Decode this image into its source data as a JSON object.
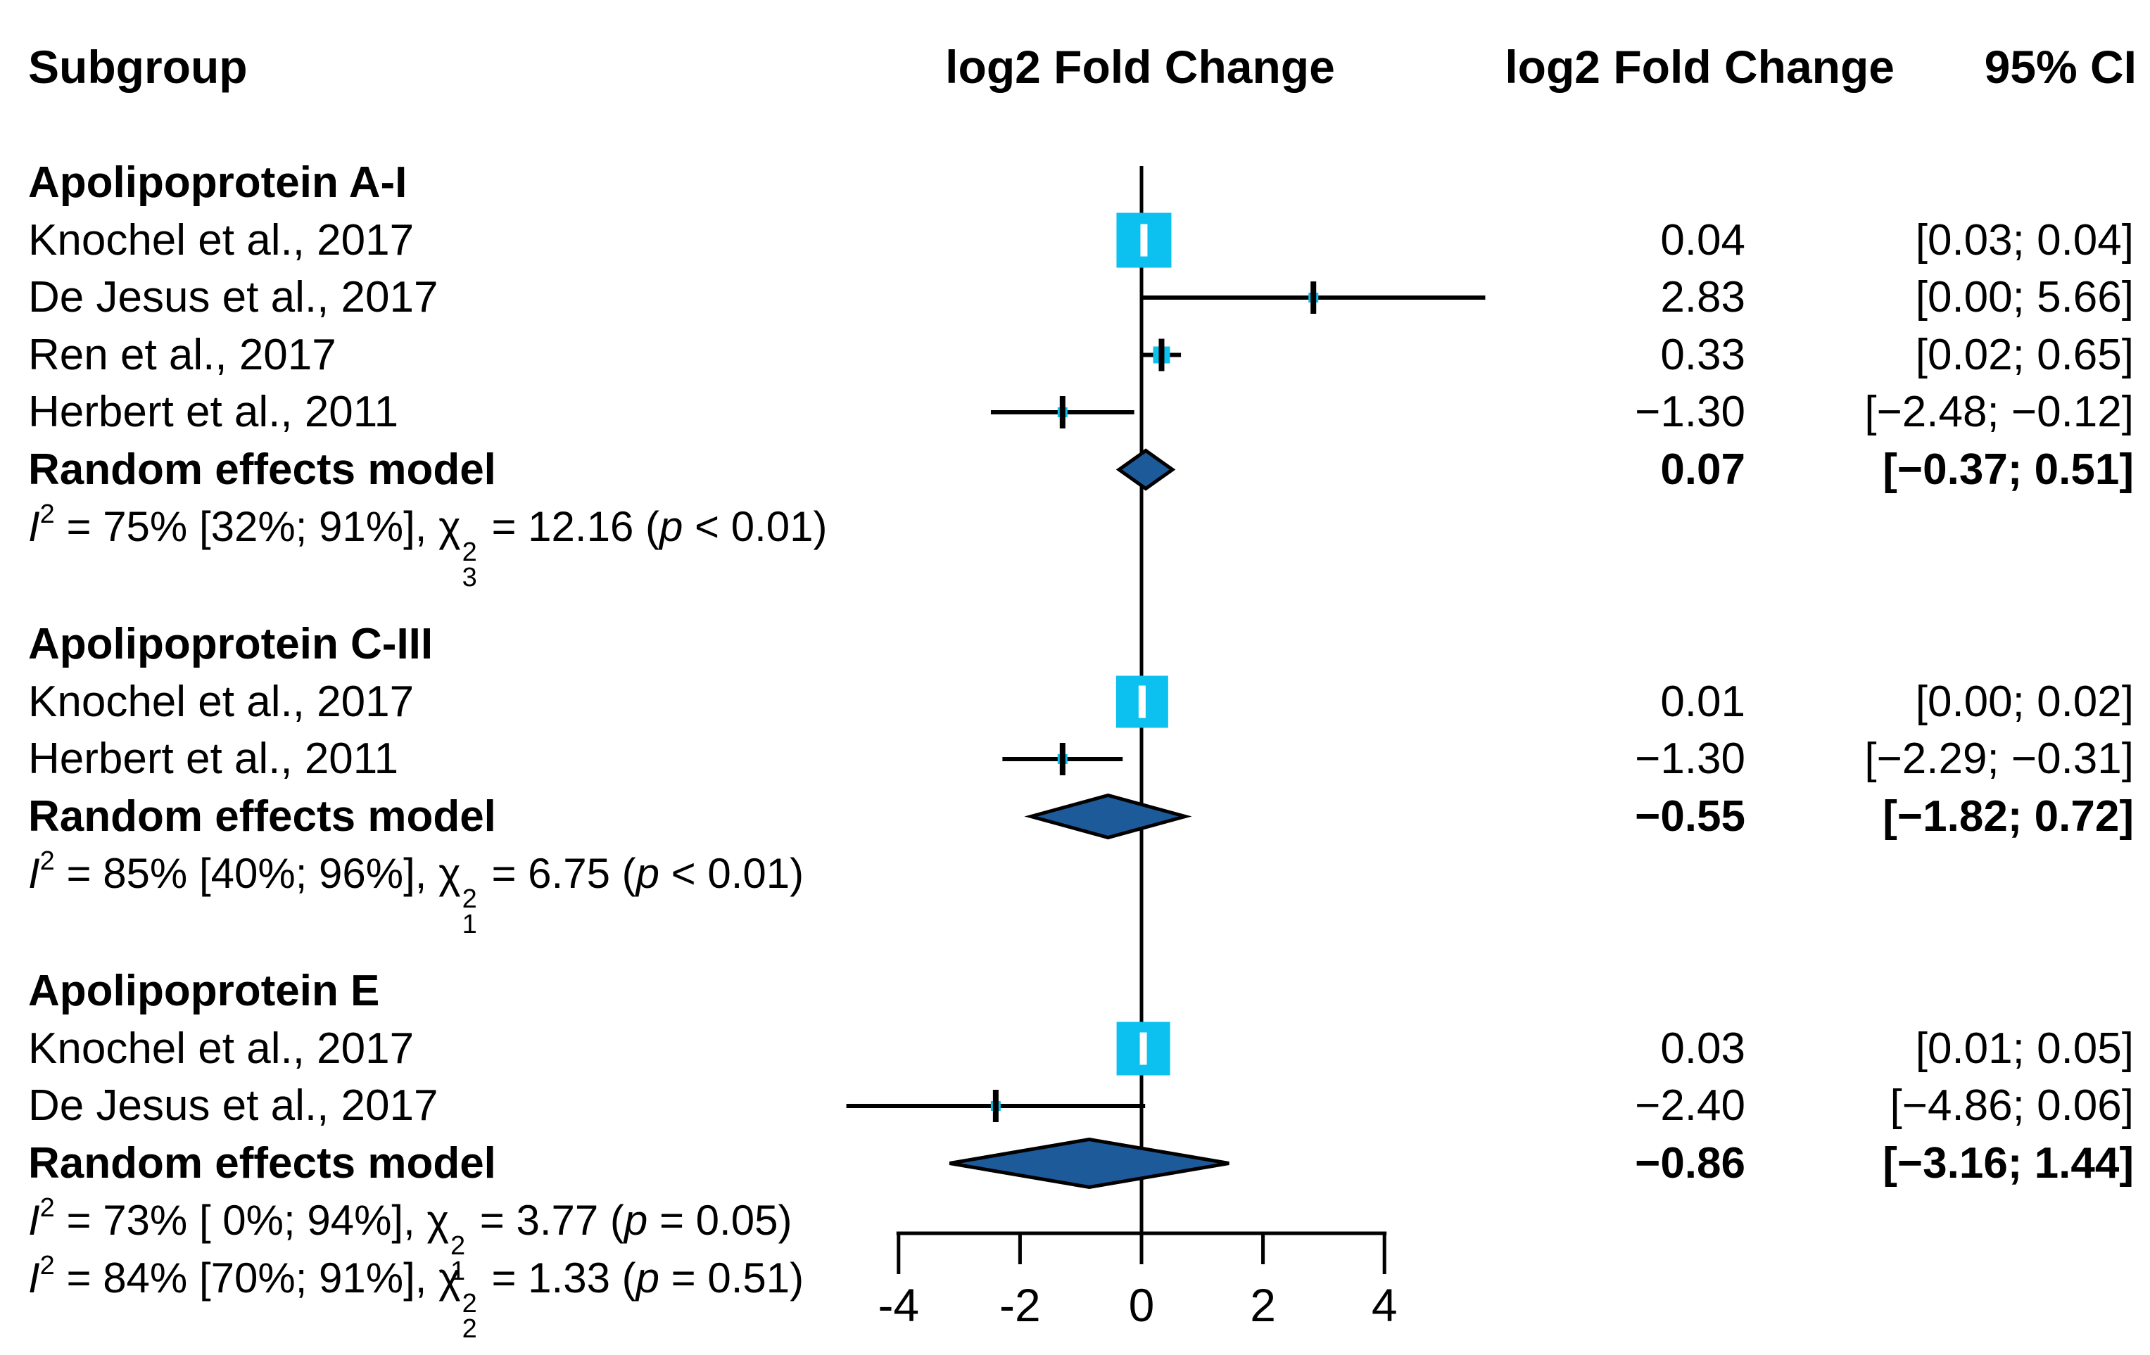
{
  "title_row": {
    "subgroup": "Subgroup",
    "plot_header": "log2 Fold Change",
    "effect_header": "log2 Fold Change",
    "ci_header": "95% CI"
  },
  "chart_data": {
    "type": "forest",
    "xlabel": "log2 Fold Change",
    "axis": {
      "xmin": -4,
      "xmax": 4,
      "zero_line": 0
    },
    "axis_tick_values": [
      -4,
      -2,
      0,
      2,
      4
    ],
    "axis_tick_labels": [
      "-4",
      "-2",
      "0",
      "2",
      "4"
    ],
    "colors": {
      "square_fill": "#0cc0ef",
      "diamond_fill": "#1c5a9a",
      "line": "#000000",
      "background": "#ffffff"
    },
    "symbols": {
      "i": "I",
      "chi": "χ",
      "p": "p"
    },
    "sections": [
      {
        "heading": "Apolipoprotein A-I",
        "studies": [
          {
            "label": "Knochel et al., 2017",
            "effect": 0.04,
            "ci": [
              0.03,
              0.04
            ],
            "effect_text": "0.04",
            "ci_text": "[0.03; 0.04]",
            "marker": "square",
            "marker_size": 78
          },
          {
            "label": "De Jesus et al., 2017",
            "effect": 2.83,
            "ci": [
              0.0,
              5.66
            ],
            "effect_text": "2.83",
            "ci_text": "[0.00; 5.66]",
            "marker": "tick",
            "marker_size": 14
          },
          {
            "label": "Ren et al., 2017",
            "effect": 0.33,
            "ci": [
              0.02,
              0.65
            ],
            "effect_text": "0.33",
            "ci_text": "[0.02; 0.65]",
            "marker": "tick",
            "marker_size": 24
          },
          {
            "label": "Herbert et al., 2011",
            "effect": -1.3,
            "ci": [
              -2.48,
              -0.12
            ],
            "effect_text": "−1.30",
            "ci_text": "[−2.48; −0.12]",
            "marker": "tick",
            "marker_size": 14
          }
        ],
        "random_effects": {
          "label": "Random effects model",
          "effect": 0.07,
          "ci": [
            -0.37,
            0.51
          ],
          "effect_text": "0.07",
          "ci_text": "[−0.37; 0.51]",
          "diamond_half_height": 27
        },
        "stats": [
          {
            "i2_tail": " = 75% [32%; 91%], ",
            "chi_sub": "3",
            "chi_tail": " = 12.16 (",
            "p_tail": " < 0.01)"
          }
        ]
      },
      {
        "heading": "Apolipoprotein C-III",
        "studies": [
          {
            "label": "Knochel et al., 2017",
            "effect": 0.01,
            "ci": [
              0.0,
              0.02
            ],
            "effect_text": "0.01",
            "ci_text": "[0.00; 0.02]",
            "marker": "square",
            "marker_size": 74
          },
          {
            "label": "Herbert et al., 2011",
            "effect": -1.3,
            "ci": [
              -2.29,
              -0.31
            ],
            "effect_text": "−1.30",
            "ci_text": "[−2.29; −0.31]",
            "marker": "tick",
            "marker_size": 14
          }
        ],
        "random_effects": {
          "label": "Random effects model",
          "effect": -0.55,
          "ci": [
            -1.82,
            0.72
          ],
          "effect_text": "−0.55",
          "ci_text": "[−1.82; 0.72]",
          "diamond_half_height": 30
        },
        "stats": [
          {
            "i2_tail": " = 85% [40%; 96%], ",
            "chi_sub": "1",
            "chi_tail": " = 6.75 (",
            "p_tail": " < 0.01)"
          }
        ]
      },
      {
        "heading": "Apolipoprotein E",
        "studies": [
          {
            "label": "Knochel et al., 2017",
            "effect": 0.03,
            "ci": [
              0.01,
              0.05
            ],
            "effect_text": "0.03",
            "ci_text": "[0.01; 0.05]",
            "marker": "square",
            "marker_size": 76
          },
          {
            "label": "De Jesus et al., 2017",
            "effect": -2.4,
            "ci": [
              -4.86,
              0.06
            ],
            "effect_text": "−2.40",
            "ci_text": "[−4.86; 0.06]",
            "marker": "tick",
            "marker_size": 14
          }
        ],
        "random_effects": {
          "label": "Random effects model",
          "effect": -0.86,
          "ci": [
            -3.16,
            1.44
          ],
          "effect_text": "−0.86",
          "ci_text": "[−3.16; 1.44]",
          "diamond_half_height": 34
        },
        "stats": [
          {
            "i2_tail": " = 73% [ 0%; 94%], ",
            "chi_sub": "1",
            "chi_tail": " = 3.77 (",
            "p_tail": " = 0.05)"
          },
          {
            "i2_tail": " = 84% [70%; 91%], ",
            "chi_sub": "2",
            "chi_tail": " = 1.33 (",
            "p_tail": " = 0.51)"
          }
        ]
      }
    ]
  }
}
